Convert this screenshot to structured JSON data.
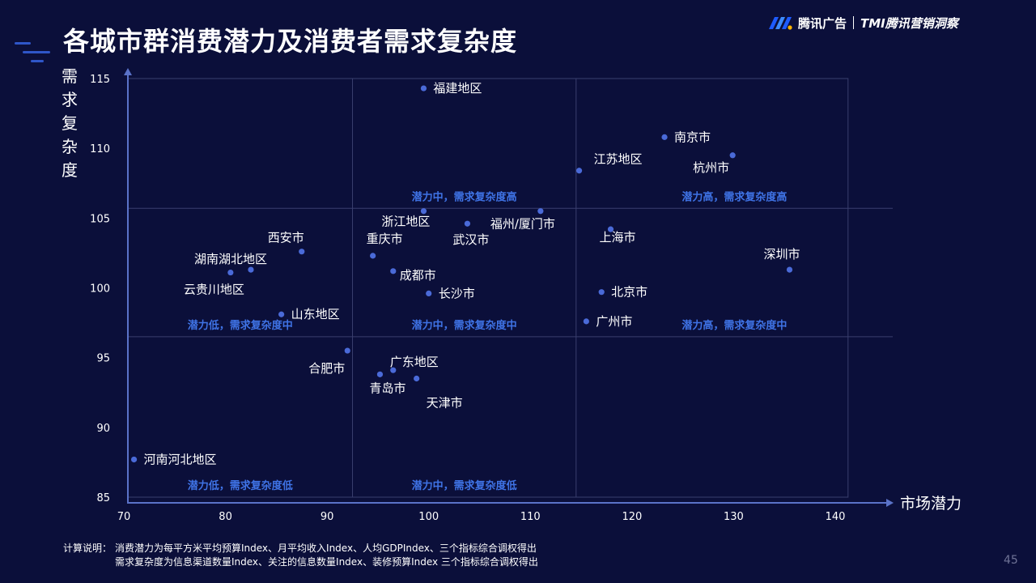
{
  "slide": {
    "title": "各城市群消费潜力及消费者需求复杂度",
    "page_number": "45"
  },
  "brand": {
    "name": "腾讯广告",
    "tmi": "TMI腾讯营销洞察"
  },
  "note": {
    "label": "计算说明：",
    "line1": "消费潜力为每平方米平均预算Index、月平均收入Index、人均GDPIndex、三个指标综合调权得出",
    "line2": "需求复杂度为信息渠道数量Index、关注的信息数量Index、装修预算Index 三个指标综合调权得出"
  },
  "chart_data": {
    "type": "scatter",
    "title": "",
    "xlabel": "市场潜力",
    "ylabel": "需求复杂度",
    "xlim": [
      70,
      145
    ],
    "ylim": [
      85,
      115
    ],
    "x_ticks": [
      70,
      80,
      90,
      100,
      110,
      120,
      130,
      140
    ],
    "y_ticks": [
      85,
      90,
      95,
      100,
      105,
      110,
      115
    ],
    "x_dividers": [
      92.5,
      114.5
    ],
    "y_dividers": [
      96.5,
      105.7
    ],
    "grid": false,
    "point_color": "#4a6ad8",
    "quadrant_label_color": "#3f73e6",
    "quadrant_labels": [
      {
        "label": "潜力中，需求复杂度高",
        "row": "high",
        "col": "mid"
      },
      {
        "label": "潜力高，需求复杂度高",
        "row": "high",
        "col": "high"
      },
      {
        "label": "潜力低，需求复杂度中",
        "row": "mid",
        "col": "low"
      },
      {
        "label": "潜力中，需求复杂度中",
        "row": "mid",
        "col": "mid"
      },
      {
        "label": "潜力高，需求复杂度中",
        "row": "mid",
        "col": "high"
      },
      {
        "label": "潜力低，需求复杂度低",
        "row": "low",
        "col": "low"
      },
      {
        "label": "潜力中，需求复杂度低",
        "row": "low",
        "col": "mid"
      }
    ],
    "points": [
      {
        "label": "福建地区",
        "x": 99.5,
        "y": 114.3
      },
      {
        "label": "南京市",
        "x": 123.2,
        "y": 110.8
      },
      {
        "label": "杭州市",
        "x": 129.9,
        "y": 109.5
      },
      {
        "label": "江苏地区",
        "x": 114.8,
        "y": 108.4
      },
      {
        "label": "浙江地区",
        "x": 99.5,
        "y": 105.5
      },
      {
        "label": "福州/厦门市",
        "x": 111.0,
        "y": 105.5
      },
      {
        "label": "武汉市",
        "x": 103.8,
        "y": 104.6
      },
      {
        "label": "上海市",
        "x": 117.9,
        "y": 104.2
      },
      {
        "label": "重庆市",
        "x": 94.5,
        "y": 102.3
      },
      {
        "label": "西安市",
        "x": 87.5,
        "y": 102.6
      },
      {
        "label": "湖南湖北地区",
        "x": 82.5,
        "y": 101.3
      },
      {
        "label": "深圳市",
        "x": 135.5,
        "y": 101.3
      },
      {
        "label": "云贵川地区",
        "x": 80.5,
        "y": 101.1
      },
      {
        "label": "成都市",
        "x": 96.5,
        "y": 101.2
      },
      {
        "label": "长沙市",
        "x": 100.0,
        "y": 99.6
      },
      {
        "label": "北京市",
        "x": 117.0,
        "y": 99.7
      },
      {
        "label": "山东地区",
        "x": 85.5,
        "y": 98.1
      },
      {
        "label": "广州市",
        "x": 115.5,
        "y": 97.6
      },
      {
        "label": "合肥市",
        "x": 92.0,
        "y": 95.5
      },
      {
        "label": "广东地区",
        "x": 96.5,
        "y": 94.1
      },
      {
        "label": "青岛市",
        "x": 95.2,
        "y": 93.8
      },
      {
        "label": "天津市",
        "x": 98.8,
        "y": 93.5
      },
      {
        "label": "河南河北地区",
        "x": 71.0,
        "y": 87.7
      }
    ]
  }
}
